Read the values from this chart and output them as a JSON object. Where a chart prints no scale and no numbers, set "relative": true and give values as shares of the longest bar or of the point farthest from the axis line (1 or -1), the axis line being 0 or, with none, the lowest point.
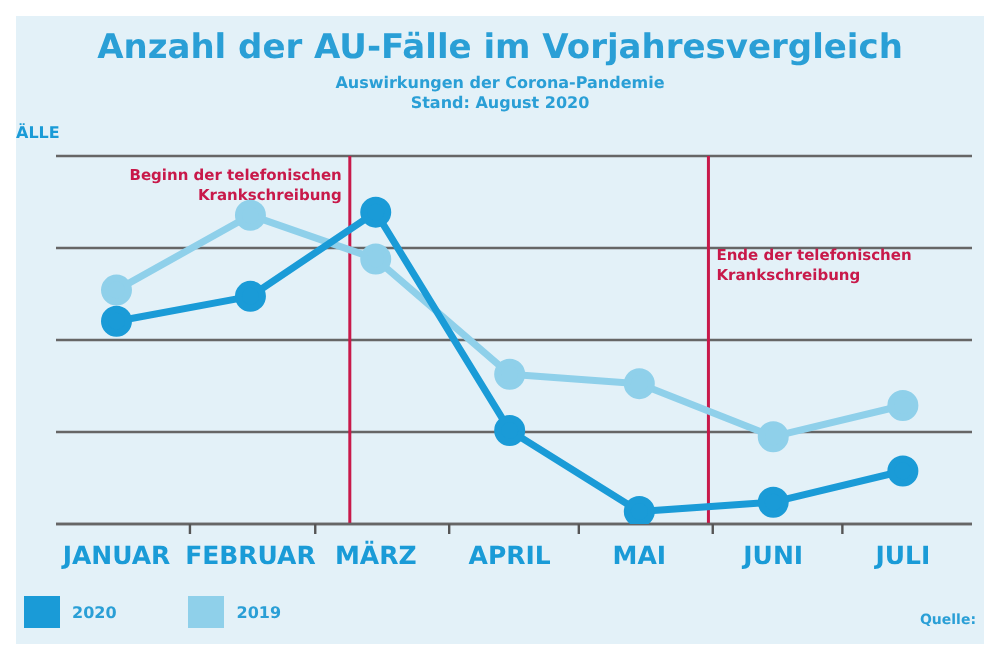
{
  "chart_data": {
    "type": "line",
    "title": "Anzahl der AU-Fälle im Vorjahresvergleich",
    "subtitle": "Auswirkungen der Corona-Pandemie\nStand: August 2020",
    "ylabel": "ÄLLE",
    "relative": true,
    "x": [
      "--01-15",
      "--02-15",
      "--03-15",
      "--04-15",
      "--05-15",
      "--06-15",
      "--07-15"
    ],
    "xlim": [
      "--01-01",
      "--07-31"
    ],
    "xticks": [
      {
        "value": "--01-15",
        "label": "JANUAR"
      },
      {
        "value": "--02-01",
        "label": null
      },
      {
        "value": "--02-15",
        "label": "FEBRUAR"
      },
      {
        "value": "--03-01",
        "label": null
      },
      {
        "value": "--03-15",
        "label": "MÄRZ"
      },
      {
        "value": "--04-01",
        "label": null
      },
      {
        "value": "--04-15",
        "label": "APRIL"
      },
      {
        "value": "--05-01",
        "label": null
      },
      {
        "value": "--05-15",
        "label": "MAI"
      },
      {
        "value": "--06-01",
        "label": null
      },
      {
        "value": "--06-15",
        "label": "JUNI"
      },
      {
        "value": "--07-01",
        "label": null
      },
      {
        "value": "--07-15",
        "label": "JULI"
      }
    ],
    "series": [
      {
        "name": "2020",
        "color": "#1a9bd7",
        "values": [
          0.65,
          0.73,
          1,
          0.3,
          0.04,
          0.07,
          0.17
        ]
      },
      {
        "name": "2019",
        "color": "#8fd0ea",
        "values": [
          0.75,
          0.99,
          0.85,
          0.48,
          0.45,
          0.28,
          0.38
        ]
      }
    ],
    "ref_lines": [
      {
        "axis": "x",
        "value": "--03-09",
        "label": "Beginn der telefonischen\nKrankschreibung",
        "color": "#c8194a"
      },
      {
        "axis": "x",
        "value": "--05-31",
        "label": "Ende der telefonischen\nKrankschreibung",
        "color": "#c8194a"
      }
    ],
    "annotations": [
      "Quelle:"
    ],
    "grid": "y",
    "marker": "circle",
    "legend": "bottom left"
  }
}
